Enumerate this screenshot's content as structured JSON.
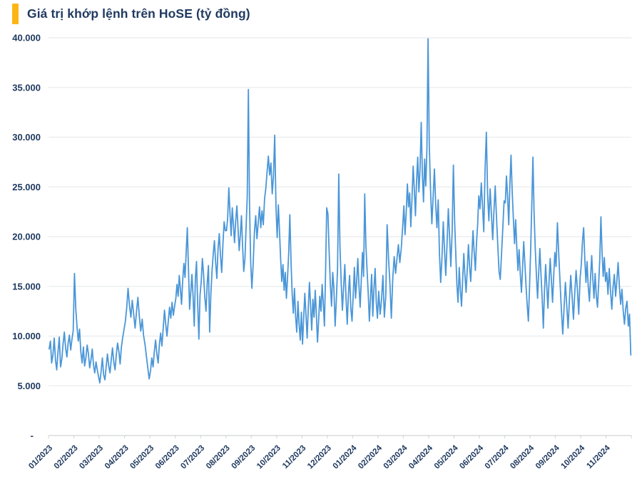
{
  "header": {
    "title": "Giá trị khớp lệnh trên HoSE (tỷ đồng)",
    "accent_color": "#fdb515",
    "title_color": "#203a60"
  },
  "chart_data": {
    "type": "line",
    "title": "Giá trị khớp lệnh trên HoSE (tỷ đồng)",
    "unit": "tỷ đồng",
    "line_color": "#4a96d8",
    "grid_color": "#e9ebed",
    "axis_color": "#d0d4d8",
    "label_color": "#203a60",
    "grid": true,
    "legend": "none",
    "ylim": [
      0,
      40000
    ],
    "y_ticks": [
      {
        "value": 40000,
        "label": "40.000"
      },
      {
        "value": 35000,
        "label": "35.000"
      },
      {
        "value": 30000,
        "label": "30.000"
      },
      {
        "value": 25000,
        "label": "25.000"
      },
      {
        "value": 20000,
        "label": "20.000"
      },
      {
        "value": 15000,
        "label": "15.000"
      },
      {
        "value": 10000,
        "label": "10.000"
      },
      {
        "value": 5000,
        "label": "5.000"
      },
      {
        "value": 0,
        "label": "-"
      }
    ],
    "months": [
      {
        "label": "01/2023",
        "values": [
          8700,
          9500,
          7300,
          8100,
          9800,
          7600,
          6600,
          8400,
          9900,
          6900,
          7700,
          9200,
          10400,
          8800,
          7900,
          9300,
          10100,
          8600,
          9700,
          10500
        ]
      },
      {
        "label": "02/2023",
        "values": [
          16300,
          12800,
          10900,
          9500,
          10700,
          8400,
          7300,
          8900,
          7000,
          7800,
          9100,
          8200,
          6800,
          7600,
          8700,
          7100,
          6300,
          7400,
          6600,
          5900
        ]
      },
      {
        "label": "03/2023",
        "values": [
          5300,
          6400,
          7800,
          6100,
          5600,
          6900,
          8200,
          7000,
          6300,
          7600,
          8800,
          7400,
          6600,
          8100,
          9300,
          8500,
          7200,
          8900,
          9800,
          10600
        ]
      },
      {
        "label": "04/2023",
        "values": [
          11400,
          12800,
          14800,
          13100,
          11900,
          13600,
          12200,
          10800,
          12500,
          13900,
          12000,
          10500,
          11700,
          10100,
          9200,
          8000,
          6800,
          5700
        ]
      },
      {
        "label": "05/2023",
        "values": [
          6500,
          7800,
          6900,
          8400,
          9600,
          8200,
          7300,
          9100,
          10300,
          9000,
          10800,
          12600,
          11200,
          10000,
          11500,
          12900,
          11800,
          13400,
          12100,
          13000
        ]
      },
      {
        "label": "06/2023",
        "values": [
          13800,
          15200,
          14000,
          16100,
          14700,
          13200,
          15600,
          17300,
          15900,
          18400,
          20900,
          16800,
          12700,
          14500,
          16200,
          13900,
          11000,
          15800,
          17500,
          13300,
          9700,
          14100
        ]
      },
      {
        "label": "07/2023",
        "values": [
          15400,
          17800,
          16200,
          13900,
          12500,
          15300,
          17100,
          10400,
          14200,
          16600,
          18200,
          19600,
          17400,
          15800,
          18800,
          20300,
          18100,
          16400,
          19200,
          21500,
          20600
        ]
      },
      {
        "label": "08/2023",
        "values": [
          20600,
          21800,
          24900,
          22400,
          20100,
          22900,
          21200,
          19400,
          21600,
          23100,
          20800,
          18600,
          20200,
          22100,
          19000,
          16500,
          17800,
          21000,
          24000,
          34800,
          23200,
          17500
        ]
      },
      {
        "label": "09/2023",
        "values": [
          14800,
          17200,
          20500,
          22100,
          19800,
          21400,
          23000,
          20900,
          22600,
          21200,
          23800,
          24900,
          26600,
          28100,
          26200,
          27400,
          24300,
          26000,
          30200,
          23000
        ]
      },
      {
        "label": "10/2023",
        "values": [
          19900,
          23200,
          20600,
          17800,
          15500,
          17200,
          14600,
          16400,
          13800,
          15900,
          18300,
          22200,
          17500,
          14200,
          12300,
          14800,
          12000,
          10400,
          13500,
          11200,
          9600,
          12400
        ]
      },
      {
        "label": "11/2023",
        "values": [
          9200,
          11800,
          14300,
          12100,
          9800,
          12900,
          15400,
          13000,
          10600,
          13700,
          11900,
          14600,
          12200,
          9400,
          11600,
          14000,
          12500,
          15200,
          13300,
          11000,
          16400,
          22900
        ]
      },
      {
        "label": "12/2023",
        "values": [
          22300,
          18500,
          15200,
          13000,
          16400,
          14800,
          11000,
          13600,
          16800,
          26300,
          19000,
          15400,
          12600,
          14900,
          17200,
          13800,
          11200,
          14200,
          16100,
          12800,
          11500
        ]
      },
      {
        "label": "01/2024",
        "values": [
          14200,
          16900,
          13800,
          15500,
          17800,
          15100,
          12900,
          15700,
          18400,
          16000,
          24300,
          19200,
          16600,
          14300,
          11500,
          13900,
          16200,
          12000,
          14700,
          16800,
          13400,
          11800
        ]
      },
      {
        "label": "02/2024",
        "values": [
          14500,
          12200,
          13600,
          16100,
          11900,
          14000,
          21200,
          17800,
          15200,
          11800,
          15800,
          18000,
          16300,
          17800,
          19200,
          17400,
          18800,
          20900
        ]
      },
      {
        "label": "03/2024",
        "values": [
          23100,
          20200,
          22500,
          25300,
          23000,
          24400,
          21000,
          23700,
          27100,
          24800,
          22100,
          25600,
          28000,
          24500,
          26700,
          31500,
          26300,
          23500,
          27800,
          25100,
          28900,
          39900
        ]
      },
      {
        "label": "04/2024",
        "values": [
          29200,
          24600,
          21300,
          24000,
          26800,
          23400,
          20900,
          23700,
          18200,
          15400,
          17900,
          21500,
          18600,
          16100,
          19300,
          22800,
          19900,
          17000,
          20400,
          27200
        ]
      },
      {
        "label": "05/2024",
        "values": [
          21600,
          18400,
          15200,
          13400,
          16900,
          14600,
          13000,
          15700,
          18300,
          16100,
          14400,
          16800,
          19200,
          17000,
          15500,
          18100,
          20600,
          18500,
          16600,
          19400,
          21200,
          24100
        ]
      },
      {
        "label": "06/2024",
        "values": [
          22800,
          25400,
          23000,
          20500,
          26700,
          30500,
          24200,
          21600,
          24800,
          22300,
          19700,
          22500,
          25100,
          22000,
          19200,
          16500,
          15700,
          18300,
          20900,
          23600
        ]
      },
      {
        "label": "07/2024",
        "values": [
          23400,
          26100,
          24000,
          21200,
          25300,
          28200,
          24600,
          21800,
          19300,
          21700,
          18900,
          16600,
          18700,
          16200,
          14400,
          16900,
          19500,
          17300,
          15100,
          13200,
          11500,
          14800
        ]
      },
      {
        "label": "08/2024",
        "values": [
          18600,
          23200,
          28000,
          22400,
          18900,
          16100,
          13800,
          16400,
          18800,
          16200,
          13900,
          10800,
          14600,
          17200,
          15000,
          12800,
          15500,
          17800,
          15600,
          13400,
          16000,
          18400
        ]
      },
      {
        "label": "09/2024",
        "values": [
          17000,
          21400,
          18200,
          15300,
          12600,
          10200,
          12900,
          15400,
          13100,
          10800,
          13600,
          16100,
          14000,
          11700,
          14300,
          16600,
          14600,
          12200,
          15800
        ]
      },
      {
        "label": "10/2024",
        "values": [
          17200,
          19600,
          20900,
          17800,
          15400,
          17500,
          15000,
          13500,
          15900,
          18100,
          15700,
          13800,
          16300,
          14100,
          12900,
          15200,
          17700,
          22000,
          18400,
          16000,
          17900,
          15500
        ]
      },
      {
        "label": "11/2024",
        "values": [
          16400,
          14200,
          16800,
          14500,
          12700,
          14900,
          16200,
          14000,
          15600,
          17400,
          15000,
          13200,
          14700,
          12500,
          11200,
          12800,
          13500,
          11000,
          12200,
          8100
        ]
      }
    ]
  }
}
